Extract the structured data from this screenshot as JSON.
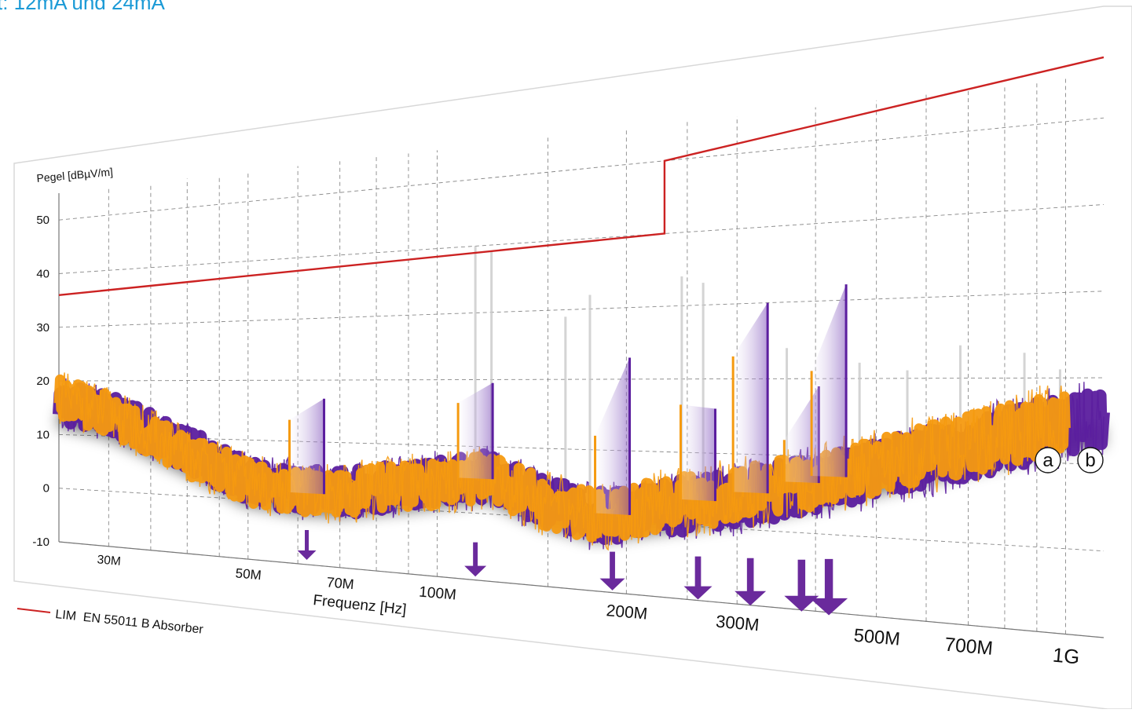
{
  "heading": "t: 12mA und 24mA",
  "chart_data": {
    "type": "line",
    "title": "",
    "ylabel": "Pegel [dBµV/m]",
    "xlabel": "Frequenz [Hz]",
    "xscale": "log",
    "xlim": [
      25,
      1150
    ],
    "ylim": [
      -10,
      55
    ],
    "yticks": [
      50,
      40,
      30,
      20,
      10,
      0,
      -10
    ],
    "xticks": [
      {
        "value": 30,
        "label": "30M"
      },
      {
        "value": 50,
        "label": "50M"
      },
      {
        "value": 70,
        "label": "70M"
      },
      {
        "value": 100,
        "label": "100M"
      },
      {
        "value": 200,
        "label": "200M"
      },
      {
        "value": 300,
        "label": "300M"
      },
      {
        "value": 500,
        "label": "500M"
      },
      {
        "value": 700,
        "label": "700M"
      },
      {
        "value": 1000,
        "label": "1G"
      }
    ],
    "grid": true,
    "limit_line": {
      "name": "LIM  EN 55011 B Absorber",
      "color": "#cc2222",
      "points": [
        [
          25,
          36
        ],
        [
          230,
          40
        ],
        [
          230,
          50
        ],
        [
          1150,
          57
        ]
      ]
    },
    "series": [
      {
        "key": "a",
        "color": "#f59a10",
        "x": [
          25,
          30,
          40,
          50,
          60,
          70,
          90,
          120,
          150,
          180,
          220,
          300,
          400,
          500,
          700,
          1000
        ],
        "y": [
          17,
          14,
          7,
          3,
          1.5,
          2,
          3.5,
          5.5,
          2,
          0.5,
          2.5,
          4.5,
          7,
          9,
          12,
          15
        ]
      },
      {
        "key": "b",
        "color": "#5b1e9e",
        "x": [
          25,
          30,
          40,
          50,
          60,
          70,
          90,
          120,
          150,
          180,
          220,
          300,
          400,
          500,
          700,
          1000,
          1150
        ],
        "y": [
          16,
          14,
          8,
          3,
          2,
          2,
          3.5,
          5.5,
          2,
          0.5,
          2,
          4,
          6.5,
          8.5,
          11.5,
          14.5,
          15
        ]
      }
    ],
    "peak_pairs": [
      {
        "x": 62,
        "a": 13.5,
        "b": 17
      },
      {
        "x": 115,
        "a": 16.5,
        "b": 19.5
      },
      {
        "x": 190,
        "a": 12,
        "b": 23
      },
      {
        "x": 260,
        "a": 16.5,
        "b": 16
      },
      {
        "x": 315,
        "a": 23,
        "b": 30
      },
      {
        "x": 380,
        "a": 12,
        "b": 19
      },
      {
        "x": 420,
        "a": 21,
        "b": 32
      }
    ],
    "background_spikes": [
      {
        "x": 115,
        "y": 40
      },
      {
        "x": 122,
        "y": 39
      },
      {
        "x": 160,
        "y": 29
      },
      {
        "x": 175,
        "y": 32
      },
      {
        "x": 245,
        "y": 34
      },
      {
        "x": 265,
        "y": 33
      },
      {
        "x": 360,
        "y": 24
      },
      {
        "x": 470,
        "y": 22
      },
      {
        "x": 560,
        "y": 21
      },
      {
        "x": 680,
        "y": 24
      },
      {
        "x": 860,
        "y": 23
      },
      {
        "x": 980,
        "y": 21
      }
    ],
    "arrows_x": [
      62,
      115,
      190,
      260,
      315,
      380,
      420
    ],
    "badges": [
      "a",
      "b"
    ],
    "colors": {
      "arrow": "#6a2a9c",
      "grid": "#888888"
    }
  }
}
